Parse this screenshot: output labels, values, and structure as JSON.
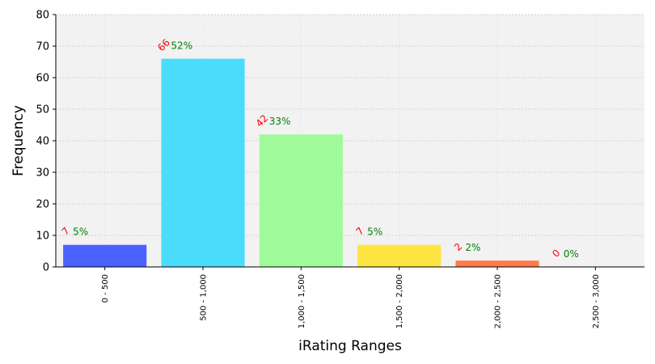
{
  "chart_data": {
    "type": "bar",
    "title": "",
    "xlabel": "iRating Ranges",
    "ylabel": "Frequency",
    "ylim": [
      0,
      80
    ],
    "yticks": [
      0,
      10,
      20,
      30,
      40,
      50,
      60,
      70,
      80
    ],
    "grid": true,
    "categories": [
      "0 - 500",
      "500 - 1,000",
      "1,000 - 1,500",
      "1,500 - 2,000",
      "2,000 - 2,500",
      "2,500 - 3,000"
    ],
    "values": [
      7,
      66,
      42,
      7,
      2,
      0
    ],
    "count_labels": [
      "7",
      "66",
      "42",
      "7",
      "2",
      "0"
    ],
    "percent_labels": [
      "5%",
      "52%",
      "33%",
      "5%",
      "2%",
      "0%"
    ],
    "colors": [
      "#4a62ff",
      "#4adcfb",
      "#9ffb9a",
      "#fde440",
      "#ff7b4a",
      "#c0392b"
    ],
    "plot_background": "#f2f2f2",
    "count_label_color": "#ff0000",
    "percent_label_color": "#008000"
  }
}
